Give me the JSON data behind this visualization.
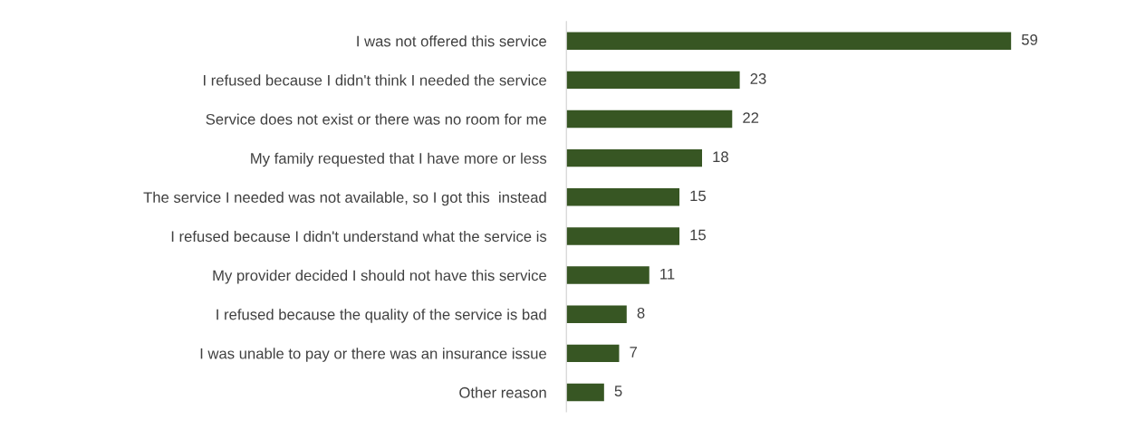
{
  "chart_data": {
    "type": "bar",
    "orientation": "horizontal",
    "categories": [
      "I was not offered this service",
      "I refused because I didn't think I needed the service",
      "Service does not exist or there was no room for me",
      "My family requested that I have more or less",
      "The service I needed was not available, so I got this  instead",
      "I refused because I didn't understand what the service is",
      "My provider decided I should not have this service",
      "I refused because the quality of the service is bad",
      "I was unable to pay or there was an insurance issue",
      "Other reason"
    ],
    "values": [
      59,
      23,
      22,
      18,
      15,
      15,
      11,
      8,
      7,
      5
    ],
    "color": "#375623",
    "data_labels": true,
    "tick_labels": "y",
    "grid": false,
    "legend": false
  }
}
